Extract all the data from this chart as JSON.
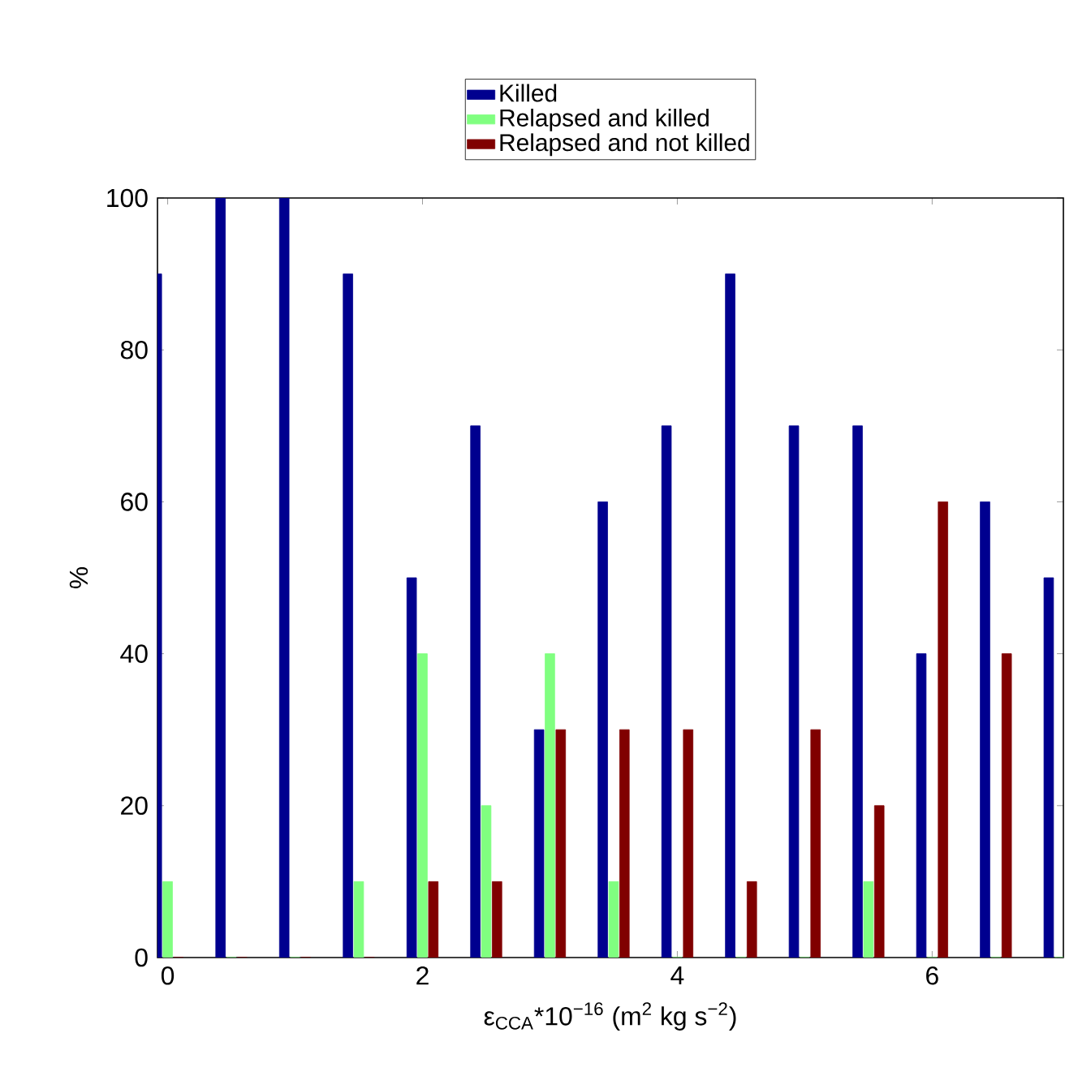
{
  "chart_data": {
    "type": "bar",
    "x": [
      0,
      0.5,
      1,
      1.5,
      2,
      2.5,
      3,
      3.5,
      4,
      4.5,
      5,
      5.5,
      6,
      6.5,
      7
    ],
    "series": [
      {
        "name": "Killed",
        "color": "#00008f",
        "values": [
          90,
          100,
          100,
          90,
          50,
          70,
          30,
          60,
          70,
          90,
          70,
          70,
          40,
          60,
          50
        ]
      },
      {
        "name": "Relapsed and killed",
        "color": "#80ff80",
        "values": [
          10,
          0,
          0,
          10,
          40,
          20,
          40,
          10,
          0,
          0,
          0,
          10,
          0,
          0,
          0
        ]
      },
      {
        "name": "Relapsed and not killed",
        "color": "#800000",
        "values": [
          0,
          0,
          0,
          0,
          10,
          10,
          30,
          30,
          30,
          10,
          30,
          20,
          60,
          40,
          null
        ]
      }
    ],
    "xlabel": "ε$_{CCA}$*10$^{−16}$ (m$^{2}$ kg s$^{−2}$)",
    "ylabel": "%",
    "xlim": [
      -0.08,
      7.03
    ],
    "xticks": [
      0,
      2,
      4,
      6
    ],
    "ylim": [
      0,
      100
    ],
    "yticks": [
      0,
      20,
      40,
      60,
      80,
      100
    ],
    "legend": "top"
  }
}
